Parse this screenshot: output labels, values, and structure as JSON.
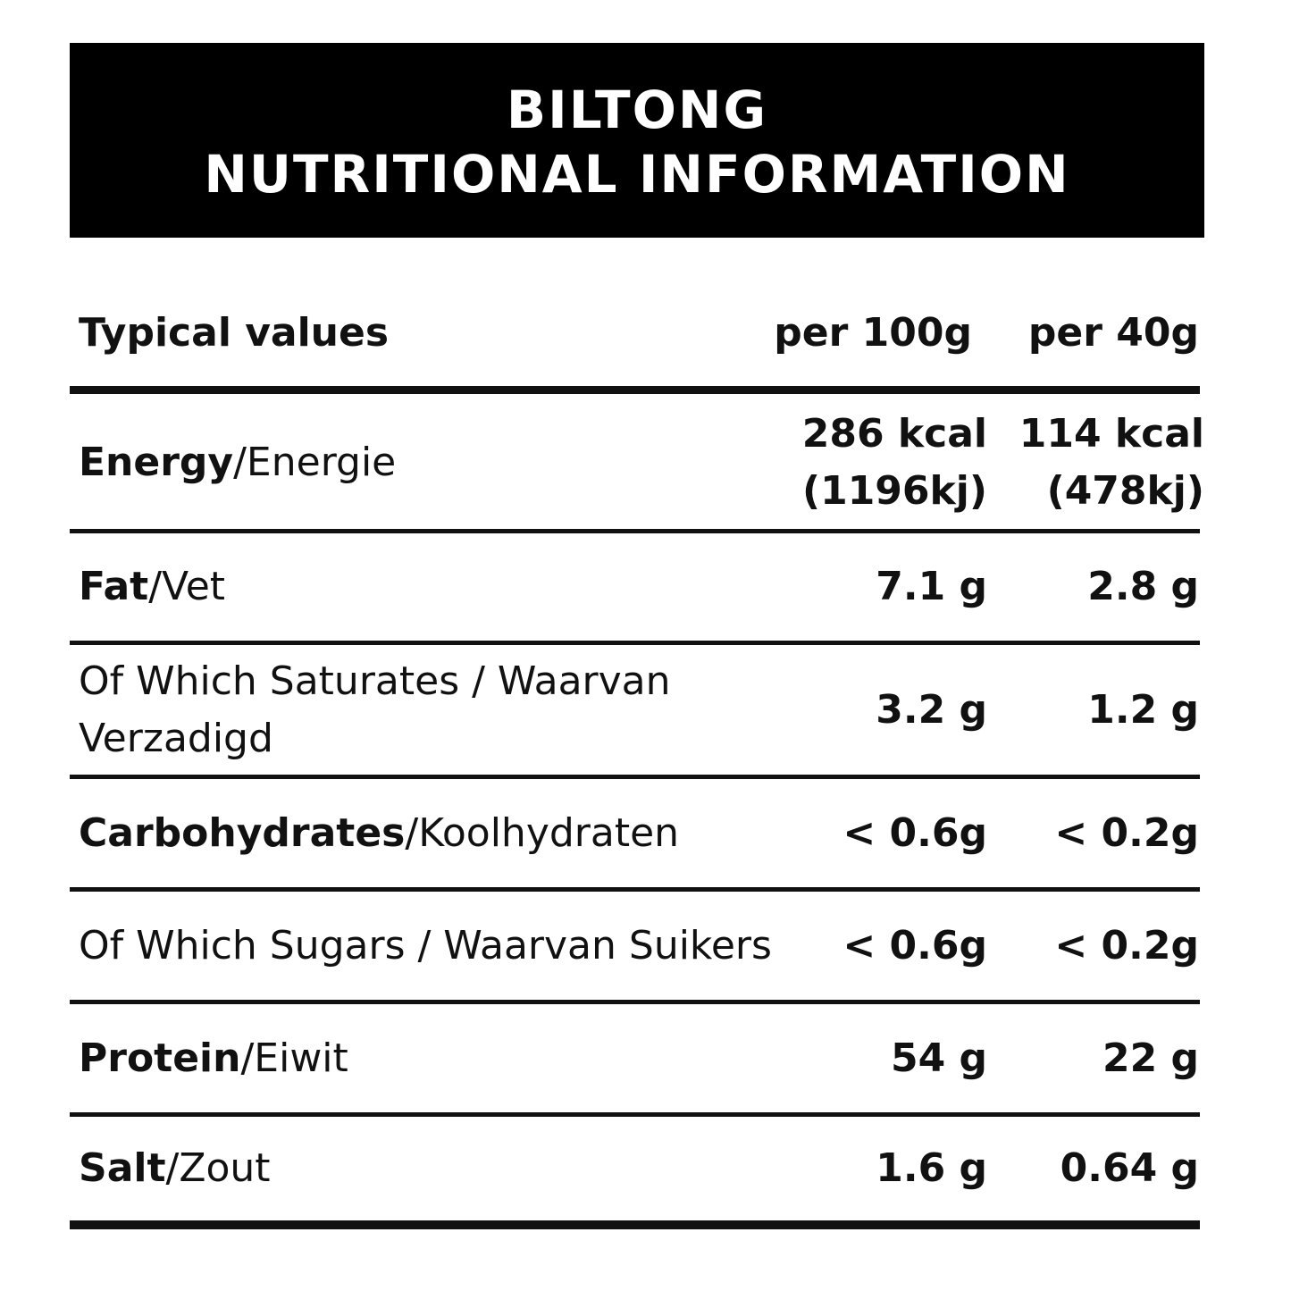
{
  "title": {
    "line1": "BILTONG",
    "line2": "NUTRITIONAL INFORMATION"
  },
  "header": {
    "label": "Typical values",
    "col1": "per 100g",
    "col2": "per 40g"
  },
  "rows": [
    {
      "name_en": "Energy",
      "name_nl": "/Energie",
      "per100_a": "286 kcal",
      "per100_b": "(1196kj)",
      "per40_a": "114 kcal",
      "per40_b": "(478kj)"
    },
    {
      "name_en": "Fat",
      "name_nl": "/Vet",
      "per100": "7.1 g",
      "per40": "2.8 g"
    },
    {
      "name_line1": "Of Which Saturates / Waarvan",
      "name_line2": "Verzadigd",
      "per100": "3.2 g",
      "per40": "1.2 g"
    },
    {
      "name_en": "Carbohydrates",
      "name_nl": "/Koolhydraten",
      "per100": "< 0.6g",
      "per40": "< 0.2g"
    },
    {
      "name_plain": "Of Which Sugars / Waarvan Suikers",
      "per100": "< 0.6g",
      "per40": "< 0.2g"
    },
    {
      "name_en": "Protein",
      "name_nl": "/Eiwit",
      "per100": "54 g",
      "per40": "22 g"
    },
    {
      "name_en": "Salt",
      "name_nl": "/Zout",
      "per100": "1.6 g",
      "per40": "0.64 g"
    }
  ]
}
